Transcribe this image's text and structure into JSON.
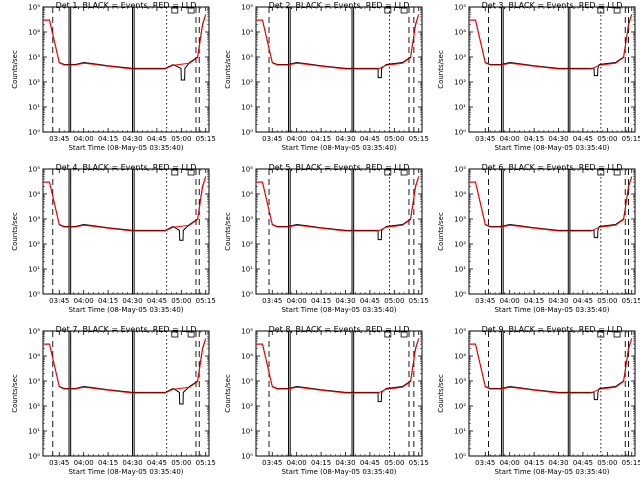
{
  "chart_data": {
    "type": "line",
    "x_unit": "time",
    "x_ticks": [
      "03:45",
      "04:00",
      "04:15",
      "04:30",
      "04:45",
      "05:00",
      "05:15"
    ],
    "xlabel": "Start Time (08-May-05 03:35:40)",
    "ylabel": "Counts/sec",
    "yscale": "log",
    "ylim": [
      1,
      100000
    ],
    "y_ticks": [
      "10⁰",
      "10¹",
      "10²",
      "10³",
      "10⁴",
      "10⁵"
    ],
    "colors": {
      "events": "#000000",
      "lld": "#ff0000"
    },
    "series_curve": {
      "x": [
        "03:35",
        "03:39",
        "03:41",
        "03:45",
        "03:48",
        "03:55",
        "04:00",
        "04:05",
        "04:15",
        "04:30",
        "04:40",
        "04:50",
        "04:55",
        "05:05",
        "05:10",
        "05:13",
        "05:15"
      ],
      "events": [
        30000,
        30000,
        8000,
        600,
        500,
        500,
        600,
        550,
        450,
        350,
        350,
        350,
        500,
        600,
        1000,
        20000,
        50000
      ],
      "lld": [
        30000,
        30000,
        8000,
        580,
        480,
        480,
        560,
        520,
        430,
        330,
        330,
        330,
        470,
        560,
        950,
        18000,
        50000
      ]
    },
    "panels": [
      {
        "title": "Det 1, BLACK = Events, RED = LLD",
        "dip_time": "05:01",
        "dip_value": 120,
        "vlines": [
          {
            "t": "03:41",
            "style": "dashed"
          },
          {
            "t": "03:51",
            "style": "solid"
          },
          {
            "t": "03:52",
            "style": "solid"
          },
          {
            "t": "04:30",
            "style": "solid"
          },
          {
            "t": "04:31",
            "style": "solid"
          },
          {
            "t": "04:51",
            "style": "dotted"
          },
          {
            "t": "05:09",
            "style": "dashed"
          },
          {
            "t": "05:11",
            "style": "dashed"
          }
        ]
      },
      {
        "title": "Det 2, BLACK = Events, RED = LLD",
        "dip_time": "04:51",
        "dip_value": 150,
        "vlines": [
          {
            "t": "03:43",
            "style": "dashed"
          },
          {
            "t": "03:55",
            "style": "solid"
          },
          {
            "t": "03:56",
            "style": "solid"
          },
          {
            "t": "04:34",
            "style": "solid"
          },
          {
            "t": "04:35",
            "style": "solid"
          },
          {
            "t": "04:57",
            "style": "dotted"
          },
          {
            "t": "05:09",
            "style": "dashed"
          },
          {
            "t": "05:12",
            "style": "dashed"
          }
        ]
      },
      {
        "title": "Det 3, BLACK = Events, RED = LLD",
        "dip_time": "04:53",
        "dip_value": 180,
        "vlines": [
          {
            "t": "03:47",
            "style": "dashed"
          },
          {
            "t": "03:55",
            "style": "solid"
          },
          {
            "t": "03:56",
            "style": "solid"
          },
          {
            "t": "04:36",
            "style": "solid"
          },
          {
            "t": "04:37",
            "style": "solid"
          },
          {
            "t": "04:56",
            "style": "dotted"
          },
          {
            "t": "05:11",
            "style": "dashed"
          },
          {
            "t": "05:13",
            "style": "dashed"
          }
        ]
      },
      {
        "title": "Det 4, BLACK = Events, RED = LLD",
        "dip_time": "05:00",
        "dip_value": 140,
        "vlines": [
          {
            "t": "03:41",
            "style": "dashed"
          },
          {
            "t": "03:51",
            "style": "solid"
          },
          {
            "t": "03:52",
            "style": "solid"
          },
          {
            "t": "04:30",
            "style": "solid"
          },
          {
            "t": "04:31",
            "style": "solid"
          },
          {
            "t": "04:51",
            "style": "dotted"
          },
          {
            "t": "05:09",
            "style": "dashed"
          },
          {
            "t": "05:11",
            "style": "dashed"
          }
        ]
      },
      {
        "title": "Det 5, BLACK = Events, RED = LLD",
        "dip_time": "04:51",
        "dip_value": 150,
        "vlines": [
          {
            "t": "03:43",
            "style": "dashed"
          },
          {
            "t": "03:55",
            "style": "solid"
          },
          {
            "t": "03:56",
            "style": "solid"
          },
          {
            "t": "04:34",
            "style": "solid"
          },
          {
            "t": "04:35",
            "style": "solid"
          },
          {
            "t": "04:57",
            "style": "dotted"
          },
          {
            "t": "05:09",
            "style": "dashed"
          },
          {
            "t": "05:12",
            "style": "dashed"
          }
        ]
      },
      {
        "title": "Det 6, BLACK = Events, RED = LLD",
        "dip_time": "04:53",
        "dip_value": 180,
        "vlines": [
          {
            "t": "03:47",
            "style": "dashed"
          },
          {
            "t": "03:55",
            "style": "solid"
          },
          {
            "t": "03:56",
            "style": "solid"
          },
          {
            "t": "04:36",
            "style": "solid"
          },
          {
            "t": "04:37",
            "style": "solid"
          },
          {
            "t": "04:56",
            "style": "dotted"
          },
          {
            "t": "05:11",
            "style": "dashed"
          },
          {
            "t": "05:13",
            "style": "dashed"
          }
        ]
      },
      {
        "title": "Det 7, BLACK = Events, RED = LLD",
        "dip_time": "05:00",
        "dip_value": 120,
        "vlines": [
          {
            "t": "03:41",
            "style": "dashed"
          },
          {
            "t": "03:51",
            "style": "solid"
          },
          {
            "t": "03:52",
            "style": "solid"
          },
          {
            "t": "04:30",
            "style": "solid"
          },
          {
            "t": "04:31",
            "style": "solid"
          },
          {
            "t": "04:51",
            "style": "dotted"
          },
          {
            "t": "05:09",
            "style": "dashed"
          },
          {
            "t": "05:11",
            "style": "dashed"
          }
        ]
      },
      {
        "title": "Det 8, BLACK = Events, RED = LLD",
        "dip_time": "04:51",
        "dip_value": 150,
        "vlines": [
          {
            "t": "03:43",
            "style": "dashed"
          },
          {
            "t": "03:55",
            "style": "solid"
          },
          {
            "t": "03:56",
            "style": "solid"
          },
          {
            "t": "04:34",
            "style": "solid"
          },
          {
            "t": "04:35",
            "style": "solid"
          },
          {
            "t": "04:57",
            "style": "dotted"
          },
          {
            "t": "05:09",
            "style": "dashed"
          },
          {
            "t": "05:12",
            "style": "dashed"
          }
        ]
      },
      {
        "title": "Det 9, BLACK = Events, RED = LLD",
        "dip_time": "04:53",
        "dip_value": 180,
        "vlines": [
          {
            "t": "03:47",
            "style": "dashed"
          },
          {
            "t": "03:55",
            "style": "solid"
          },
          {
            "t": "03:56",
            "style": "solid"
          },
          {
            "t": "04:36",
            "style": "solid"
          },
          {
            "t": "04:37",
            "style": "solid"
          },
          {
            "t": "04:56",
            "style": "dotted"
          },
          {
            "t": "05:11",
            "style": "dashed"
          },
          {
            "t": "05:13",
            "style": "dashed"
          }
        ]
      }
    ]
  }
}
